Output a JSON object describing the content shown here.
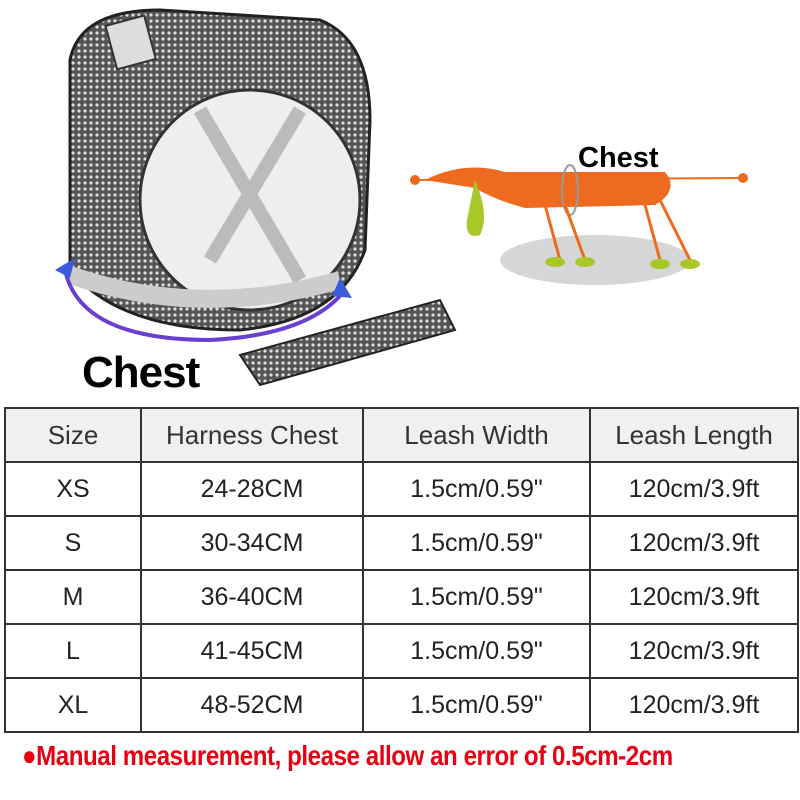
{
  "illustration": {
    "harness_label": "Chest",
    "dog_label": "Chest",
    "colors": {
      "dog": "#ee6a1e",
      "feet": "#a8c82a",
      "arrow": "#6a3fd0",
      "shadow": "#d6d6d6"
    }
  },
  "size_table": {
    "headers": [
      "Size",
      "Harness Chest",
      "Leash Width",
      "Leash Length"
    ],
    "rows": [
      [
        "XS",
        "24-28CM",
        "1.5cm/0.59\"",
        "120cm/3.9ft"
      ],
      [
        "S",
        "30-34CM",
        "1.5cm/0.59\"",
        "120cm/3.9ft"
      ],
      [
        "M",
        "36-40CM",
        "1.5cm/0.59\"",
        "120cm/3.9ft"
      ],
      [
        "L",
        "41-45CM",
        "1.5cm/0.59\"",
        "120cm/3.9ft"
      ],
      [
        "XL",
        "48-52CM",
        "1.5cm/0.59\"",
        "120cm/3.9ft"
      ]
    ]
  },
  "footer_note": "●Manual measurement, please allow an error of 0.5cm-2cm",
  "footer_color": "#e60012"
}
